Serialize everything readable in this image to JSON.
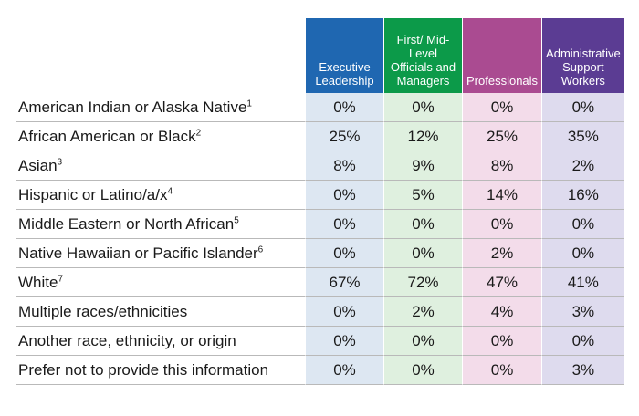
{
  "columns": [
    {
      "label": "Executive Leadership",
      "color": "#1f67b1"
    },
    {
      "label": "First/ Mid-Level Officials and Managers",
      "color": "#0c9a49"
    },
    {
      "label": "Professionals",
      "color": "#aa4b91"
    },
    {
      "label": "Administrative Support Workers",
      "color": "#5b3c93"
    }
  ],
  "rows": [
    {
      "label": "American Indian or Alaska Native",
      "note": "1",
      "values": [
        "0%",
        "0%",
        "0%",
        "0%"
      ]
    },
    {
      "label": "African American or Black",
      "note": "2",
      "values": [
        "25%",
        "12%",
        "25%",
        "35%"
      ]
    },
    {
      "label": "Asian",
      "note": "3",
      "values": [
        "8%",
        "9%",
        "8%",
        "2%"
      ]
    },
    {
      "label": "Hispanic or Latino/a/x",
      "note": "4",
      "values": [
        "0%",
        "5%",
        "14%",
        "16%"
      ]
    },
    {
      "label": "Middle Eastern or North African",
      "note": "5",
      "values": [
        "0%",
        "0%",
        "0%",
        "0%"
      ]
    },
    {
      "label": "Native Hawaiian or Pacific Islander",
      "note": "6",
      "values": [
        "0%",
        "0%",
        "2%",
        "0%"
      ]
    },
    {
      "label": "White",
      "note": "7",
      "values": [
        "67%",
        "72%",
        "47%",
        "41%"
      ]
    },
    {
      "label": "Multiple races/ethnicities",
      "note": "",
      "values": [
        "0%",
        "2%",
        "4%",
        "3%"
      ]
    },
    {
      "label": "Another race, ethnicity, or origin",
      "note": "",
      "values": [
        "0%",
        "0%",
        "0%",
        "0%"
      ]
    },
    {
      "label": "Prefer not to provide this information",
      "note": "",
      "values": [
        "0%",
        "0%",
        "0%",
        "3%"
      ]
    }
  ]
}
